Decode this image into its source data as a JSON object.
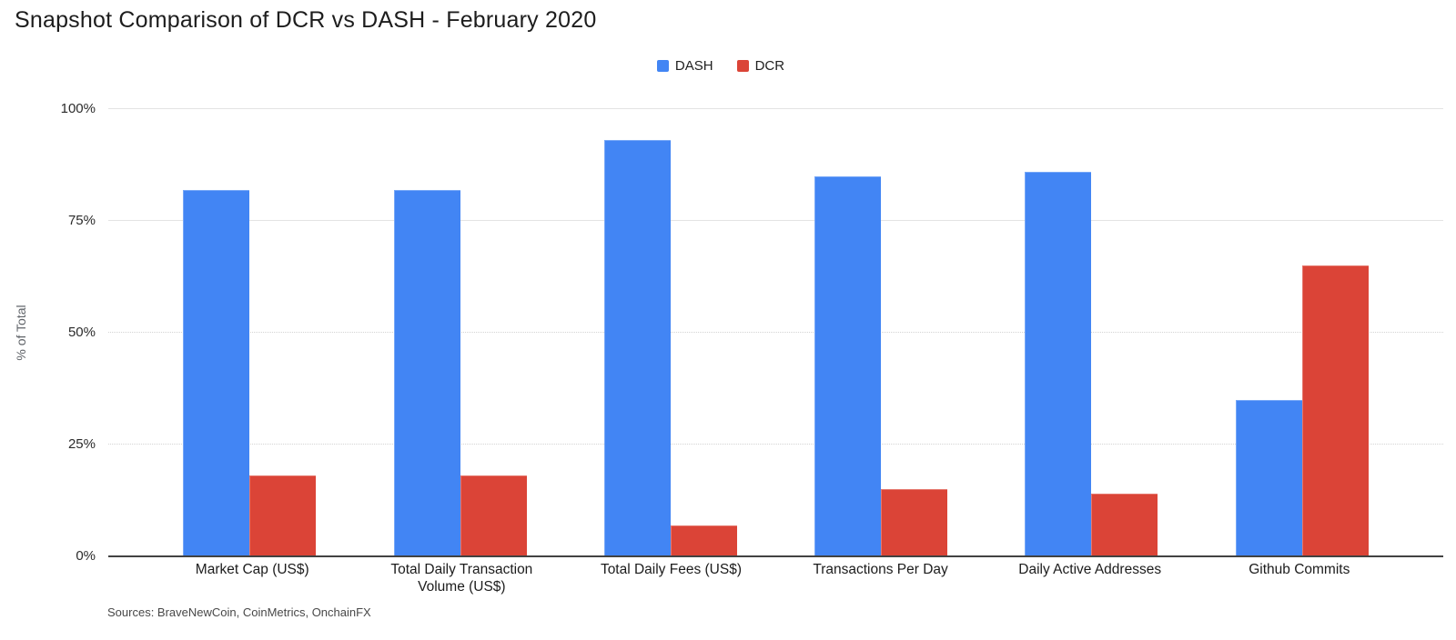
{
  "title": "Snapshot Comparison of DCR vs DASH - February 2020",
  "source_note": "Sources: BraveNewCoin, CoinMetrics, OnchainFX",
  "chart_data": {
    "type": "bar",
    "title": "Snapshot Comparison of DCR vs DASH - February 2020",
    "categories": [
      "Market Cap (US$)",
      "Total Daily Transaction Volume (US$)",
      "Total Daily Fees (US$)",
      "Transactions Per Day",
      "Daily Active Addresses",
      "Github Commits"
    ],
    "series": [
      {
        "name": "DASH",
        "color": "#4285F4",
        "values": [
          82,
          82,
          93,
          85,
          86,
          35
        ]
      },
      {
        "name": "DCR",
        "color": "#DB4437",
        "values": [
          18,
          18,
          7,
          15,
          14,
          65
        ]
      }
    ],
    "xlabel": "",
    "ylabel": "% of Total",
    "yticks": [
      "0%",
      "25%",
      "50%",
      "75%",
      "100%"
    ],
    "ylim": [
      0,
      100
    ],
    "grid": "horizontal",
    "legend_position": "top-center"
  }
}
